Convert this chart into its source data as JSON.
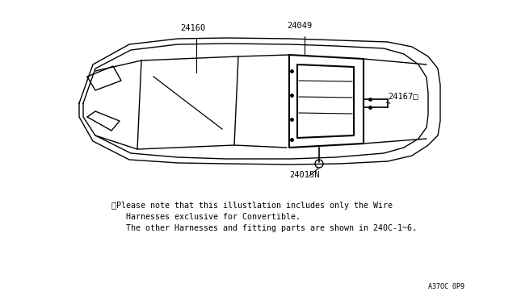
{
  "bg_color": "#ffffff",
  "line_color": "#000000",
  "note_line1": "※Please note that this illustlation includes only the Wire",
  "note_line2": "Harnesses exclusive for Convertible.",
  "note_line3": "The other Harnesses and fitting parts are shown in 240C-1~6.",
  "page_ref": "A37OC 0P9",
  "fig_width": 6.4,
  "fig_height": 3.72,
  "dpi": 100
}
